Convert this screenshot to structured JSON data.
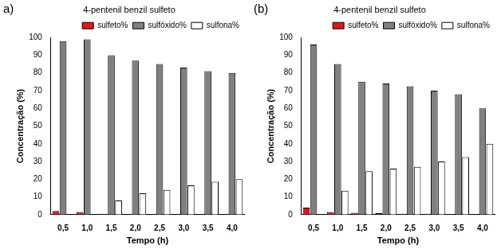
{
  "chart_data": [
    {
      "type": "bar",
      "title": "4-pentenil benzil sulfeto",
      "annotations": [
        "a)"
      ],
      "x_label": "Tempo (h)",
      "y_label": "Concentração (%)",
      "categories": [
        "0,5",
        "1,0",
        "1,5",
        "2,0",
        "2,5",
        "3,0",
        "3,5",
        "4,0"
      ],
      "series": [
        {
          "name": "sulfeto%",
          "color": "#e8141c",
          "values": [
            2,
            1.5,
            0.5,
            0.3,
            0.3,
            0.3,
            0.2,
            0.2
          ]
        },
        {
          "name": "sulfóxido%",
          "color": "#808080",
          "values": [
            98,
            99,
            90,
            87,
            85,
            83,
            81,
            80
          ]
        },
        {
          "name": "sulfona%",
          "color": "#ffffff",
          "values": [
            0,
            0,
            8,
            12,
            14,
            16.5,
            18.5,
            20
          ]
        }
      ],
      "ylim": [
        0,
        100
      ],
      "yticks": [
        0,
        10,
        20,
        30,
        40,
        50,
        60,
        70,
        80,
        90,
        100
      ],
      "grid": false,
      "legend": "upper right"
    },
    {
      "type": "bar",
      "title": "4-pentenil benzil sulfeto",
      "annotations": [
        "(b)"
      ],
      "x_label": "Tempo (h)",
      "y_label": "Concentração (%)",
      "categories": [
        "0,5",
        "1,0",
        "1,5",
        "2,0",
        "2,5",
        "3,0",
        "3,5",
        "4,0"
      ],
      "series": [
        {
          "name": "sulfeto%",
          "color": "#e8141c",
          "values": [
            4,
            1.5,
            1,
            0.8,
            0.5,
            0.5,
            0.3,
            0.3
          ]
        },
        {
          "name": "sulfóxido%",
          "color": "#808080",
          "values": [
            96,
            85,
            75,
            74,
            72.5,
            70,
            68,
            60
          ]
        },
        {
          "name": "sulfona%",
          "color": "#ffffff",
          "values": [
            0,
            13.5,
            24.5,
            26,
            27,
            30,
            32.5,
            40
          ]
        }
      ],
      "ylim": [
        0,
        100
      ],
      "yticks": [
        0,
        10,
        20,
        30,
        40,
        50,
        60,
        70,
        80,
        90,
        100
      ],
      "grid": false,
      "legend": "upper right"
    }
  ]
}
